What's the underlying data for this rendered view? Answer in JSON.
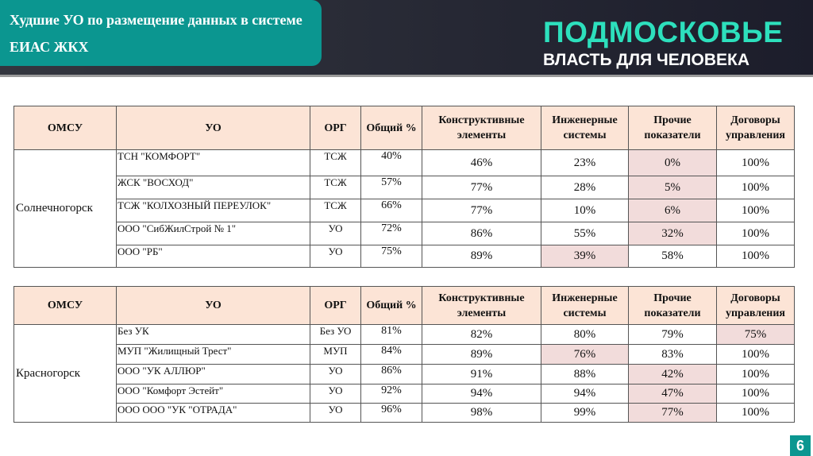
{
  "header": {
    "title": "Худшие УО по размещение данных в системе ЕИАС ЖКХ",
    "brand_line1": "ПОДМОСКОВЬЕ",
    "brand_line2": "ВЛАСТЬ ДЛЯ ЧЕЛОВЕКА"
  },
  "columns": [
    "ОМСУ",
    "УО",
    "ОРГ",
    "Общий %",
    "Конструктивные элементы",
    "Инженерные системы",
    "Прочие показатели",
    "Договоры управления"
  ],
  "highlight_color": "#f2dcdb",
  "tables": [
    {
      "omsu": "Солнечногорск",
      "rows": [
        {
          "uo": "ТСН \"КОМФОРТ\"",
          "org": "ТСЖ",
          "total": "40%",
          "constr": "46%",
          "eng": "23%",
          "other": "0%",
          "contracts": "100%",
          "highlight": "other"
        },
        {
          "uo": "ЖСК \"ВОСХОД\"",
          "org": "ТСЖ",
          "total": "57%",
          "constr": "77%",
          "eng": "28%",
          "other": "5%",
          "contracts": "100%",
          "highlight": "other"
        },
        {
          "uo": "ТСЖ \"КОЛХОЗНЫЙ ПЕРЕУЛОК\"",
          "org": "ТСЖ",
          "total": "66%",
          "constr": "77%",
          "eng": "10%",
          "other": "6%",
          "contracts": "100%",
          "highlight": "other"
        },
        {
          "uo": "ООО \"СибЖилСтрой № 1\"",
          "org": "УО",
          "total": "72%",
          "constr": "86%",
          "eng": "55%",
          "other": "32%",
          "contracts": "100%",
          "highlight": "other"
        },
        {
          "uo": "ООО \"РБ\"",
          "org": "УО",
          "total": "75%",
          "constr": "89%",
          "eng": "39%",
          "other": "58%",
          "contracts": "100%",
          "highlight": "eng"
        }
      ]
    },
    {
      "omsu": "Красногорск",
      "rows": [
        {
          "uo": "Без УК",
          "org": "Без УО",
          "total": "81%",
          "constr": "82%",
          "eng": "80%",
          "other": "79%",
          "contracts": "75%",
          "highlight": "contracts"
        },
        {
          "uo": "МУП \"Жилищный Трест\"",
          "org": "МУП",
          "total": "84%",
          "constr": "89%",
          "eng": "76%",
          "other": "83%",
          "contracts": "100%",
          "highlight": "eng"
        },
        {
          "uo": "ООО \"УК АЛЛЮР\"",
          "org": "УО",
          "total": "86%",
          "constr": "91%",
          "eng": "88%",
          "other": "42%",
          "contracts": "100%",
          "highlight": "other"
        },
        {
          "uo": "ООО \"Комфорт Эстейт\"",
          "org": "УО",
          "total": "92%",
          "constr": "94%",
          "eng": "94%",
          "other": "47%",
          "contracts": "100%",
          "highlight": "other"
        },
        {
          "uo": "ООО ООО \"УК \"ОТРАДА\"",
          "org": "УО",
          "total": "96%",
          "constr": "98%",
          "eng": "99%",
          "other": "77%",
          "contracts": "100%",
          "highlight": "other"
        }
      ]
    }
  ],
  "page_number": "6"
}
